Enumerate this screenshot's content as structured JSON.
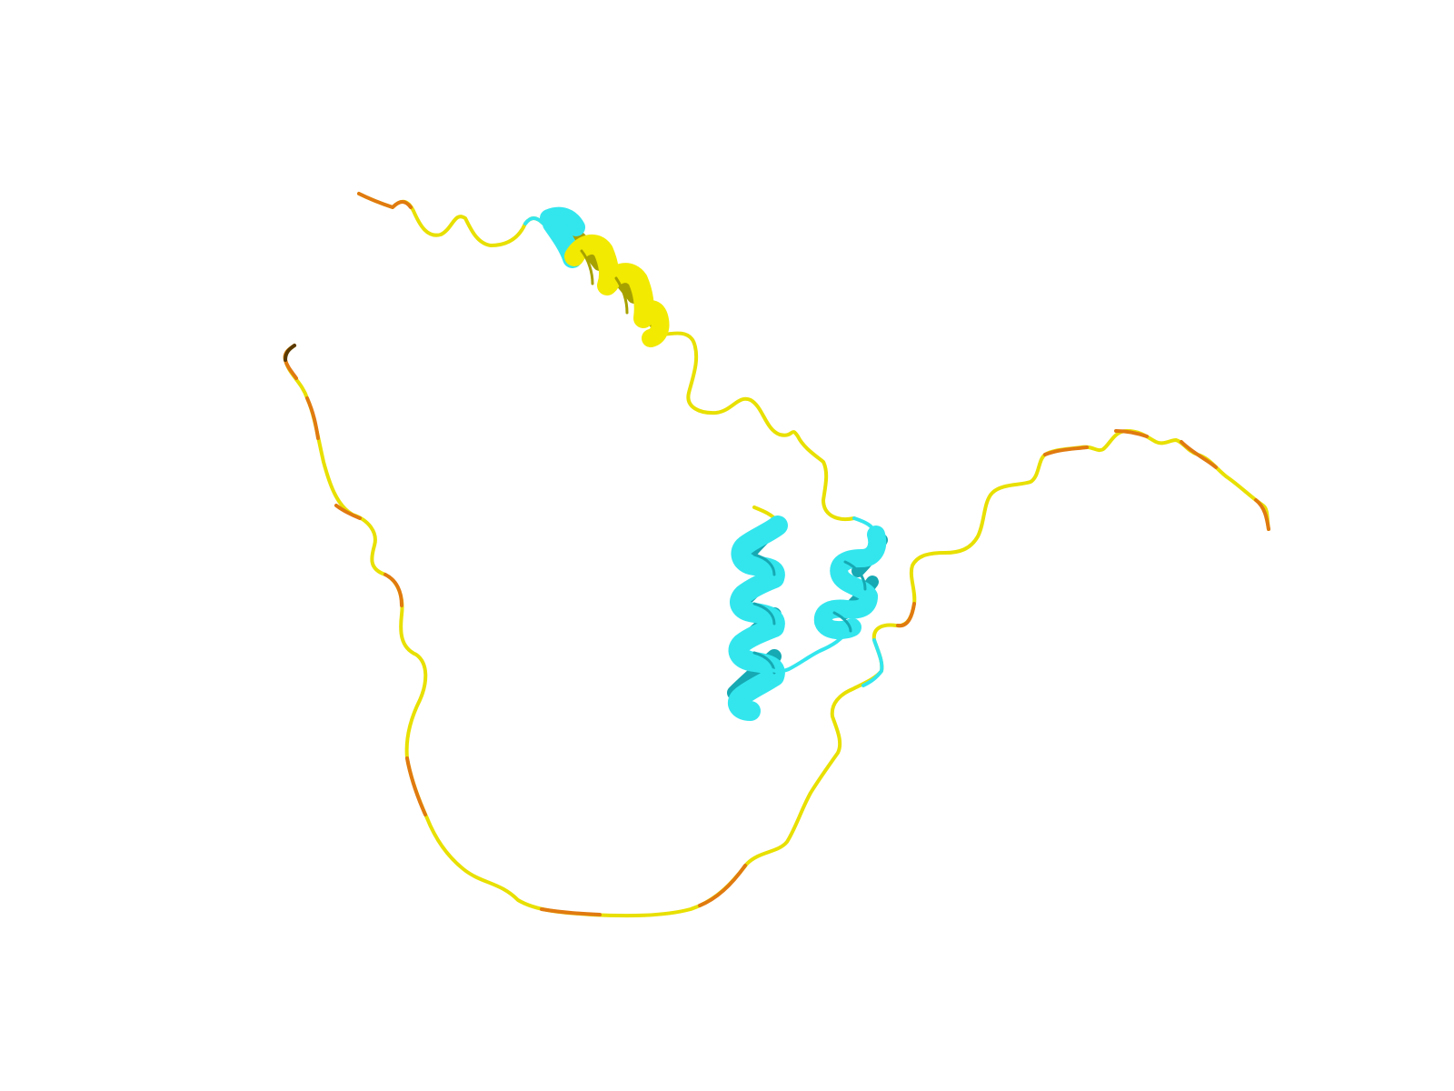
{
  "scene": {
    "background_color": "#ffffff",
    "representation": "cartoon",
    "colors": {
      "helix_cyan": "#33e6ee",
      "helix_cyan_dark": "#16a9b3",
      "helix_yellow": "#f2ea00",
      "helix_yellow_dark": "#a7a100",
      "coil_yellow": "#e8e000",
      "coil_orange": "#e07a10",
      "coil_dark": "#5a3a00"
    }
  }
}
